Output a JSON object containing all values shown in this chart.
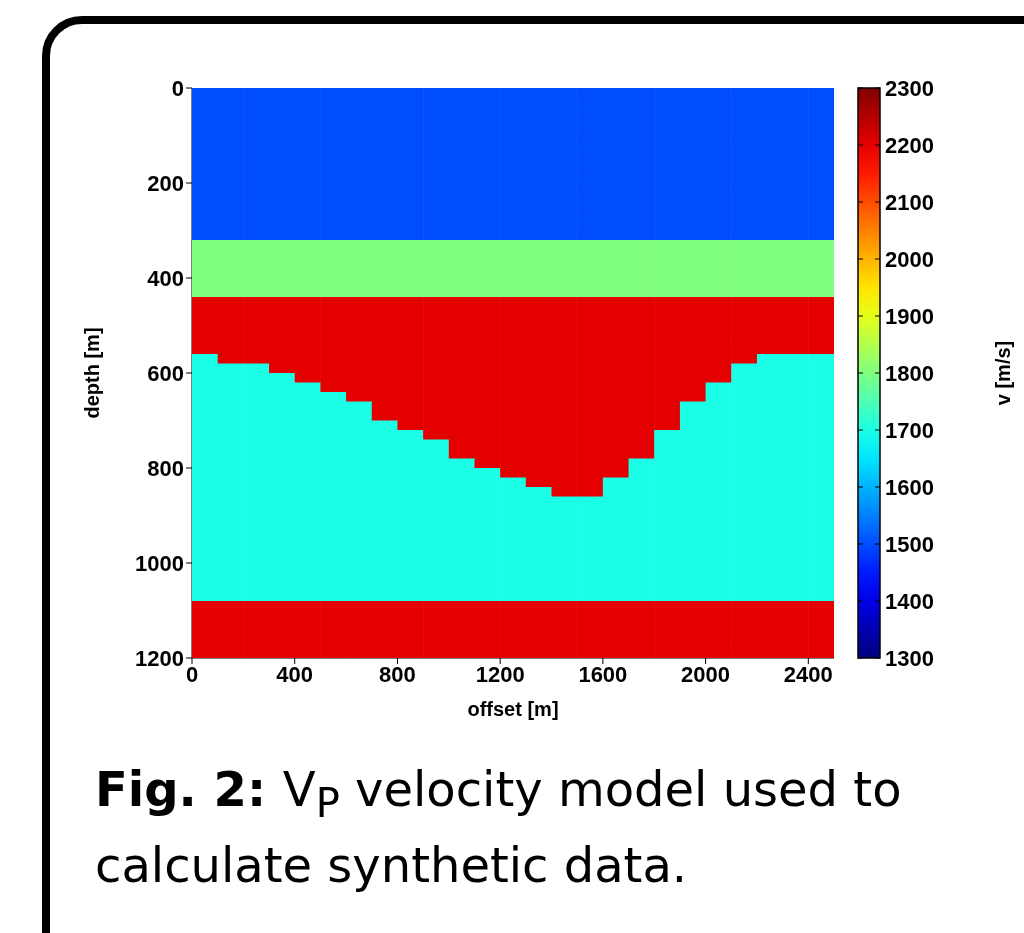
{
  "chart_data": {
    "type": "heatmap",
    "xlabel": "offset [m]",
    "ylabel": "depth [m]",
    "clabel": "v [m/s]",
    "x": [
      50,
      150,
      250,
      350,
      450,
      550,
      650,
      750,
      850,
      950,
      1050,
      1150,
      1250,
      1350,
      1450,
      1550,
      1650,
      1750,
      1850,
      1950,
      2050,
      2150,
      2250,
      2350,
      2450
    ],
    "y": [
      10,
      30,
      50,
      70,
      90,
      110,
      130,
      150,
      170,
      190,
      210,
      230,
      250,
      270,
      290,
      310,
      330,
      350,
      370,
      390,
      410,
      430,
      450,
      470,
      490,
      510,
      530,
      550,
      570,
      590,
      610,
      630,
      650,
      670,
      690,
      710,
      730,
      750,
      770,
      790,
      810,
      830,
      850,
      870,
      890,
      910,
      930,
      950,
      970,
      990,
      1010,
      1030,
      1050,
      1070,
      1090,
      1110,
      1130,
      1150,
      1170,
      1190
    ],
    "xlim": [
      0,
      2500
    ],
    "xticks": [
      0,
      400,
      800,
      1200,
      1600,
      2000,
      2400
    ],
    "ylim": [
      1200,
      0
    ],
    "yticks": [
      0,
      200,
      400,
      600,
      800,
      1000,
      1200
    ],
    "clim": [
      1300,
      2300
    ],
    "cticks": [
      1300,
      1400,
      1500,
      1600,
      1700,
      1800,
      1900,
      2000,
      2100,
      2200,
      2300
    ],
    "annotations": [
      "Fig. 2:",
      "V$_{P}$ velocity model used to calculate synthetic data."
    ],
    "cells": [
      [
        1500,
        1500,
        1500,
        1500,
        1500,
        1500,
        1500,
        1500,
        1500,
        1500,
        1500,
        1500,
        1500,
        1500,
        1500,
        1500,
        1500,
        1500,
        1500,
        1500,
        1500,
        1500,
        1500,
        1500,
        1500
      ],
      [
        1500,
        1500,
        1500,
        1500,
        1500,
        1500,
        1500,
        1500,
        1500,
        1500,
        1500,
        1500,
        1500,
        1500,
        1500,
        1500,
        1500,
        1500,
        1500,
        1500,
        1500,
        1500,
        1500,
        1500,
        1500
      ],
      [
        1500,
        1500,
        1500,
        1500,
        1500,
        1500,
        1500,
        1500,
        1500,
        1500,
        1500,
        1500,
        1500,
        1500,
        1500,
        1500,
        1500,
        1500,
        1500,
        1500,
        1500,
        1500,
        1500,
        1500,
        1500
      ],
      [
        1500,
        1500,
        1500,
        1500,
        1500,
        1500,
        1500,
        1500,
        1500,
        1500,
        1500,
        1500,
        1500,
        1500,
        1500,
        1500,
        1500,
        1500,
        1500,
        1500,
        1500,
        1500,
        1500,
        1500,
        1500
      ],
      [
        1500,
        1500,
        1500,
        1500,
        1500,
        1500,
        1500,
        1500,
        1500,
        1500,
        1500,
        1500,
        1500,
        1500,
        1500,
        1500,
        1500,
        1500,
        1500,
        1500,
        1500,
        1500,
        1500,
        1500,
        1500
      ],
      [
        1500,
        1500,
        1500,
        1500,
        1500,
        1500,
        1500,
        1500,
        1500,
        1500,
        1500,
        1500,
        1500,
        1500,
        1500,
        1500,
        1500,
        1500,
        1500,
        1500,
        1500,
        1500,
        1500,
        1500,
        1500
      ],
      [
        1500,
        1500,
        1500,
        1500,
        1500,
        1500,
        1500,
        1500,
        1500,
        1500,
        1500,
        1500,
        1500,
        1500,
        1500,
        1500,
        1500,
        1500,
        1500,
        1500,
        1500,
        1500,
        1500,
        1500,
        1500
      ],
      [
        1500,
        1500,
        1500,
        1500,
        1500,
        1500,
        1500,
        1500,
        1500,
        1500,
        1500,
        1500,
        1500,
        1500,
        1500,
        1500,
        1500,
        1500,
        1500,
        1500,
        1500,
        1500,
        1500,
        1500,
        1500
      ],
      [
        1500,
        1500,
        1500,
        1500,
        1500,
        1500,
        1500,
        1500,
        1500,
        1500,
        1500,
        1500,
        1500,
        1500,
        1500,
        1500,
        1500,
        1500,
        1500,
        1500,
        1500,
        1500,
        1500,
        1500,
        1500
      ],
      [
        1500,
        1500,
        1500,
        1500,
        1500,
        1500,
        1500,
        1500,
        1500,
        1500,
        1500,
        1500,
        1500,
        1500,
        1500,
        1500,
        1500,
        1500,
        1500,
        1500,
        1500,
        1500,
        1500,
        1500,
        1500
      ],
      [
        1500,
        1500,
        1500,
        1500,
        1500,
        1500,
        1500,
        1500,
        1500,
        1500,
        1500,
        1500,
        1500,
        1500,
        1500,
        1500,
        1500,
        1500,
        1500,
        1500,
        1500,
        1500,
        1500,
        1500,
        1500
      ],
      [
        1500,
        1500,
        1500,
        1500,
        1500,
        1500,
        1500,
        1500,
        1500,
        1500,
        1500,
        1500,
        1500,
        1500,
        1500,
        1500,
        1500,
        1500,
        1500,
        1500,
        1500,
        1500,
        1500,
        1500,
        1500
      ],
      [
        1500,
        1500,
        1500,
        1500,
        1500,
        1500,
        1500,
        1500,
        1500,
        1500,
        1500,
        1500,
        1500,
        1500,
        1500,
        1500,
        1500,
        1500,
        1500,
        1500,
        1500,
        1500,
        1500,
        1500,
        1500
      ],
      [
        1500,
        1500,
        1500,
        1500,
        1500,
        1500,
        1500,
        1500,
        1500,
        1500,
        1500,
        1500,
        1500,
        1500,
        1500,
        1500,
        1500,
        1500,
        1500,
        1500,
        1500,
        1500,
        1500,
        1500,
        1500
      ],
      [
        1500,
        1500,
        1500,
        1500,
        1500,
        1500,
        1500,
        1500,
        1500,
        1500,
        1500,
        1500,
        1500,
        1500,
        1500,
        1500,
        1500,
        1500,
        1500,
        1500,
        1500,
        1500,
        1500,
        1500,
        1500
      ],
      [
        1500,
        1500,
        1500,
        1500,
        1500,
        1500,
        1500,
        1500,
        1500,
        1500,
        1500,
        1500,
        1500,
        1500,
        1500,
        1500,
        1500,
        1500,
        1500,
        1500,
        1500,
        1500,
        1500,
        1500,
        1500
      ],
      [
        1800,
        1800,
        1800,
        1800,
        1800,
        1800,
        1800,
        1800,
        1800,
        1800,
        1800,
        1800,
        1800,
        1800,
        1800,
        1800,
        1800,
        1800,
        1800,
        1800,
        1800,
        1800,
        1800,
        1800,
        1800
      ],
      [
        1800,
        1800,
        1800,
        1800,
        1800,
        1800,
        1800,
        1800,
        1800,
        1800,
        1800,
        1800,
        1800,
        1800,
        1800,
        1800,
        1800,
        1800,
        1800,
        1800,
        1800,
        1800,
        1800,
        1800,
        1800
      ],
      [
        1800,
        1800,
        1800,
        1800,
        1800,
        1800,
        1800,
        1800,
        1800,
        1800,
        1800,
        1800,
        1800,
        1800,
        1800,
        1800,
        1800,
        1800,
        1800,
        1800,
        1800,
        1800,
        1800,
        1800,
        1800
      ],
      [
        1800,
        1800,
        1800,
        1800,
        1800,
        1800,
        1800,
        1800,
        1800,
        1800,
        1800,
        1800,
        1800,
        1800,
        1800,
        1800,
        1800,
        1800,
        1800,
        1800,
        1800,
        1800,
        1800,
        1800,
        1800
      ],
      [
        1800,
        1800,
        1800,
        1800,
        1800,
        1800,
        1800,
        1800,
        1800,
        1800,
        1800,
        1800,
        1800,
        1800,
        1800,
        1800,
        1800,
        1800,
        1800,
        1800,
        1800,
        1800,
        1800,
        1800,
        1800
      ],
      [
        1800,
        1800,
        1800,
        1800,
        1800,
        1800,
        1800,
        1800,
        1800,
        1800,
        1800,
        1800,
        1800,
        1800,
        1800,
        1800,
        1800,
        1800,
        1800,
        1800,
        1800,
        1800,
        1800,
        1800,
        1800
      ],
      [
        2200,
        2200,
        2200,
        2200,
        2200,
        2200,
        2200,
        2200,
        2200,
        2200,
        2200,
        2200,
        2200,
        2200,
        2200,
        2200,
        2200,
        2200,
        2200,
        2200,
        2200,
        2200,
        2200,
        2200,
        2200
      ],
      [
        2200,
        2200,
        2200,
        2200,
        2200,
        2200,
        2200,
        2200,
        2200,
        2200,
        2200,
        2200,
        2200,
        2200,
        2200,
        2200,
        2200,
        2200,
        2200,
        2200,
        2200,
        2200,
        2200,
        2200,
        2200
      ],
      [
        2200,
        2200,
        2200,
        2200,
        2200,
        2200,
        2200,
        2200,
        2200,
        2200,
        2200,
        2200,
        2200,
        2200,
        2200,
        2200,
        2200,
        2200,
        2200,
        2200,
        2200,
        2200,
        2200,
        2200,
        2200
      ],
      [
        2200,
        2200,
        2200,
        2200,
        2200,
        2200,
        2200,
        2200,
        2200,
        2200,
        2200,
        2200,
        2200,
        2200,
        2200,
        2200,
        2200,
        2200,
        2200,
        2200,
        2200,
        2200,
        2200,
        2200,
        2200
      ],
      [
        2200,
        2200,
        2200,
        2200,
        2200,
        2200,
        2200,
        2200,
        2200,
        2200,
        2200,
        2200,
        2200,
        2200,
        2200,
        2200,
        2200,
        2200,
        2200,
        2200,
        2200,
        2200,
        2200,
        2200,
        2200
      ],
      [
        2200,
        2200,
        2200,
        2200,
        2200,
        2200,
        2200,
        2200,
        2200,
        2200,
        2200,
        2200,
        2200,
        2200,
        2200,
        2200,
        2200,
        2200,
        2200,
        2200,
        2200,
        2200,
        2200,
        2200,
        2200
      ],
      [
        1700,
        2200,
        2200,
        2200,
        2200,
        2200,
        2200,
        2200,
        2200,
        2200,
        2200,
        2200,
        2200,
        2200,
        2200,
        2200,
        2200,
        2200,
        2200,
        2200,
        2200,
        2200,
        1700,
        1700,
        1700
      ],
      [
        1700,
        1700,
        1700,
        2200,
        2200,
        2200,
        2200,
        2200,
        2200,
        2200,
        2200,
        2200,
        2200,
        2200,
        2200,
        2200,
        2200,
        2200,
        2200,
        2200,
        2200,
        1700,
        1700,
        1700,
        1700
      ],
      [
        1700,
        1700,
        1700,
        1700,
        2200,
        2200,
        2200,
        2200,
        2200,
        2200,
        2200,
        2200,
        2200,
        2200,
        2200,
        2200,
        2200,
        2200,
        2200,
        2200,
        2200,
        1700,
        1700,
        1700,
        1700
      ],
      [
        1700,
        1700,
        1700,
        1700,
        1700,
        2200,
        2200,
        2200,
        2200,
        2200,
        2200,
        2200,
        2200,
        2200,
        2200,
        2200,
        2200,
        2200,
        2200,
        2200,
        1700,
        1700,
        1700,
        1700,
        1700
      ],
      [
        1700,
        1700,
        1700,
        1700,
        1700,
        1700,
        2200,
        2200,
        2200,
        2200,
        2200,
        2200,
        2200,
        2200,
        2200,
        2200,
        2200,
        2200,
        2200,
        2200,
        1700,
        1700,
        1700,
        1700,
        1700
      ],
      [
        1700,
        1700,
        1700,
        1700,
        1700,
        1700,
        1700,
        2200,
        2200,
        2200,
        2200,
        2200,
        2200,
        2200,
        2200,
        2200,
        2200,
        2200,
        2200,
        1700,
        1700,
        1700,
        1700,
        1700,
        1700
      ],
      [
        1700,
        1700,
        1700,
        1700,
        1700,
        1700,
        1700,
        2200,
        2200,
        2200,
        2200,
        2200,
        2200,
        2200,
        2200,
        2200,
        2200,
        2200,
        2200,
        1700,
        1700,
        1700,
        1700,
        1700,
        1700
      ],
      [
        1700,
        1700,
        1700,
        1700,
        1700,
        1700,
        1700,
        1700,
        2200,
        2200,
        2200,
        2200,
        2200,
        2200,
        2200,
        2200,
        2200,
        2200,
        2200,
        1700,
        1700,
        1700,
        1700,
        1700,
        1700
      ],
      [
        1700,
        1700,
        1700,
        1700,
        1700,
        1700,
        1700,
        1700,
        1700,
        2200,
        2200,
        2200,
        2200,
        2200,
        2200,
        2200,
        2200,
        2200,
        1700,
        1700,
        1700,
        1700,
        1700,
        1700,
        1700
      ],
      [
        1700,
        1700,
        1700,
        1700,
        1700,
        1700,
        1700,
        1700,
        1700,
        1700,
        2200,
        2200,
        2200,
        2200,
        2200,
        2200,
        2200,
        2200,
        1700,
        1700,
        1700,
        1700,
        1700,
        1700,
        1700
      ],
      [
        1700,
        1700,
        1700,
        1700,
        1700,
        1700,
        1700,
        1700,
        1700,
        1700,
        2200,
        2200,
        2200,
        2200,
        2200,
        2200,
        2200,
        2200,
        1700,
        1700,
        1700,
        1700,
        1700,
        1700,
        1700
      ],
      [
        1700,
        1700,
        1700,
        1700,
        1700,
        1700,
        1700,
        1700,
        1700,
        1700,
        1700,
        2200,
        2200,
        2200,
        2200,
        2200,
        2200,
        1700,
        1700,
        1700,
        1700,
        1700,
        1700,
        1700,
        1700
      ],
      [
        1700,
        1700,
        1700,
        1700,
        1700,
        1700,
        1700,
        1700,
        1700,
        1700,
        1700,
        1700,
        2200,
        2200,
        2200,
        2200,
        2200,
        1700,
        1700,
        1700,
        1700,
        1700,
        1700,
        1700,
        1700
      ],
      [
        1700,
        1700,
        1700,
        1700,
        1700,
        1700,
        1700,
        1700,
        1700,
        1700,
        1700,
        1700,
        1700,
        2200,
        2200,
        2200,
        1700,
        1700,
        1700,
        1700,
        1700,
        1700,
        1700,
        1700,
        1700
      ],
      [
        1700,
        1700,
        1700,
        1700,
        1700,
        1700,
        1700,
        1700,
        1700,
        1700,
        1700,
        1700,
        1700,
        1700,
        2200,
        2200,
        1700,
        1700,
        1700,
        1700,
        1700,
        1700,
        1700,
        1700,
        1700
      ],
      [
        1700,
        1700,
        1700,
        1700,
        1700,
        1700,
        1700,
        1700,
        1700,
        1700,
        1700,
        1700,
        1700,
        1700,
        1700,
        1700,
        1700,
        1700,
        1700,
        1700,
        1700,
        1700,
        1700,
        1700,
        1700
      ],
      [
        1700,
        1700,
        1700,
        1700,
        1700,
        1700,
        1700,
        1700,
        1700,
        1700,
        1700,
        1700,
        1700,
        1700,
        1700,
        1700,
        1700,
        1700,
        1700,
        1700,
        1700,
        1700,
        1700,
        1700,
        1700
      ],
      [
        1700,
        1700,
        1700,
        1700,
        1700,
        1700,
        1700,
        1700,
        1700,
        1700,
        1700,
        1700,
        1700,
        1700,
        1700,
        1700,
        1700,
        1700,
        1700,
        1700,
        1700,
        1700,
        1700,
        1700,
        1700
      ],
      [
        1700,
        1700,
        1700,
        1700,
        1700,
        1700,
        1700,
        1700,
        1700,
        1700,
        1700,
        1700,
        1700,
        1700,
        1700,
        1700,
        1700,
        1700,
        1700,
        1700,
        1700,
        1700,
        1700,
        1700,
        1700
      ],
      [
        1700,
        1700,
        1700,
        1700,
        1700,
        1700,
        1700,
        1700,
        1700,
        1700,
        1700,
        1700,
        1700,
        1700,
        1700,
        1700,
        1700,
        1700,
        1700,
        1700,
        1700,
        1700,
        1700,
        1700,
        1700
      ],
      [
        1700,
        1700,
        1700,
        1700,
        1700,
        1700,
        1700,
        1700,
        1700,
        1700,
        1700,
        1700,
        1700,
        1700,
        1700,
        1700,
        1700,
        1700,
        1700,
        1700,
        1700,
        1700,
        1700,
        1700,
        1700
      ],
      [
        1700,
        1700,
        1700,
        1700,
        1700,
        1700,
        1700,
        1700,
        1700,
        1700,
        1700,
        1700,
        1700,
        1700,
        1700,
        1700,
        1700,
        1700,
        1700,
        1700,
        1700,
        1700,
        1700,
        1700,
        1700
      ],
      [
        1700,
        1700,
        1700,
        1700,
        1700,
        1700,
        1700,
        1700,
        1700,
        1700,
        1700,
        1700,
        1700,
        1700,
        1700,
        1700,
        1700,
        1700,
        1700,
        1700,
        1700,
        1700,
        1700,
        1700,
        1700
      ],
      [
        1700,
        1700,
        1700,
        1700,
        1700,
        1700,
        1700,
        1700,
        1700,
        1700,
        1700,
        1700,
        1700,
        1700,
        1700,
        1700,
        1700,
        1700,
        1700,
        1700,
        1700,
        1700,
        1700,
        1700,
        1700
      ],
      [
        1700,
        1700,
        1700,
        1700,
        1700,
        1700,
        1700,
        1700,
        1700,
        1700,
        1700,
        1700,
        1700,
        1700,
        1700,
        1700,
        1700,
        1700,
        1700,
        1700,
        1700,
        1700,
        1700,
        1700,
        1700
      ],
      [
        1700,
        1700,
        1700,
        1700,
        1700,
        1700,
        1700,
        1700,
        1700,
        1700,
        1700,
        1700,
        1700,
        1700,
        1700,
        1700,
        1700,
        1700,
        1700,
        1700,
        1700,
        1700,
        1700,
        1700,
        1700
      ],
      [
        2200,
        2200,
        2200,
        2200,
        2200,
        2200,
        2200,
        2200,
        2200,
        2200,
        2200,
        2200,
        2200,
        2200,
        2200,
        2200,
        2200,
        2200,
        2200,
        2200,
        2200,
        2200,
        2200,
        2200,
        2200
      ],
      [
        2200,
        2200,
        2200,
        2200,
        2200,
        2200,
        2200,
        2200,
        2200,
        2200,
        2200,
        2200,
        2200,
        2200,
        2200,
        2200,
        2200,
        2200,
        2200,
        2200,
        2200,
        2200,
        2200,
        2200,
        2200
      ],
      [
        2200,
        2200,
        2200,
        2200,
        2200,
        2200,
        2200,
        2200,
        2200,
        2200,
        2200,
        2200,
        2200,
        2200,
        2200,
        2200,
        2200,
        2200,
        2200,
        2200,
        2200,
        2200,
        2200,
        2200,
        2200
      ],
      [
        2200,
        2200,
        2200,
        2200,
        2200,
        2200,
        2200,
        2200,
        2200,
        2200,
        2200,
        2200,
        2200,
        2200,
        2200,
        2200,
        2200,
        2200,
        2200,
        2200,
        2200,
        2200,
        2200,
        2200,
        2200
      ],
      [
        2200,
        2200,
        2200,
        2200,
        2200,
        2200,
        2200,
        2200,
        2200,
        2200,
        2200,
        2200,
        2200,
        2200,
        2200,
        2200,
        2200,
        2200,
        2200,
        2200,
        2200,
        2200,
        2200,
        2200,
        2200
      ],
      [
        2200,
        2200,
        2200,
        2200,
        2200,
        2200,
        2200,
        2200,
        2200,
        2200,
        2200,
        2200,
        2200,
        2200,
        2200,
        2200,
        2200,
        2200,
        2200,
        2200,
        2200,
        2200,
        2200,
        2200,
        2200
      ]
    ]
  }
}
